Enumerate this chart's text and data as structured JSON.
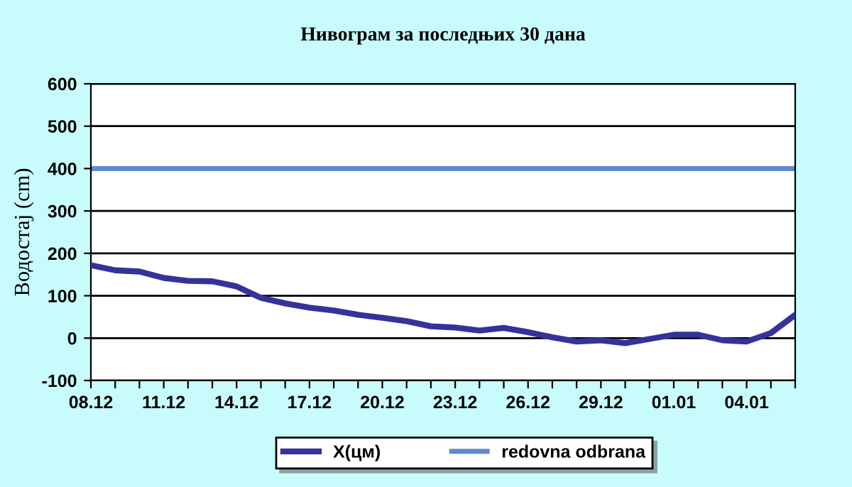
{
  "chart_data": {
    "type": "line",
    "title": "Нивограм за последњих 30 дана",
    "ylabel": "Водостај (cm)",
    "categories": [
      "08.12",
      null,
      null,
      "11.12",
      null,
      null,
      "14.12",
      null,
      null,
      "17.12",
      null,
      null,
      "20.12",
      null,
      null,
      "23.12",
      null,
      null,
      "26.12",
      null,
      null,
      "29.12",
      null,
      null,
      "01.01",
      null,
      null,
      "04.01",
      null,
      null
    ],
    "series": [
      {
        "name": "X(цм)",
        "color": "#333399",
        "values": [
          172,
          160,
          157,
          142,
          135,
          134,
          122,
          95,
          82,
          72,
          65,
          55,
          48,
          40,
          28,
          25,
          18,
          24,
          14,
          2,
          -8,
          -5,
          -12,
          -2,
          8,
          8,
          -5,
          -8,
          12,
          55
        ]
      }
    ],
    "ref_lines": [
      {
        "axis": "y",
        "value": 400,
        "label": "redovna odbrana",
        "color": "#5b8bd0"
      }
    ],
    "ylim": [
      -100,
      600
    ],
    "yticks": [
      -100,
      0,
      100,
      200,
      300,
      400,
      500,
      600
    ],
    "grid": "y",
    "legend": "bottom",
    "marker": "none",
    "line_style": "solid"
  }
}
